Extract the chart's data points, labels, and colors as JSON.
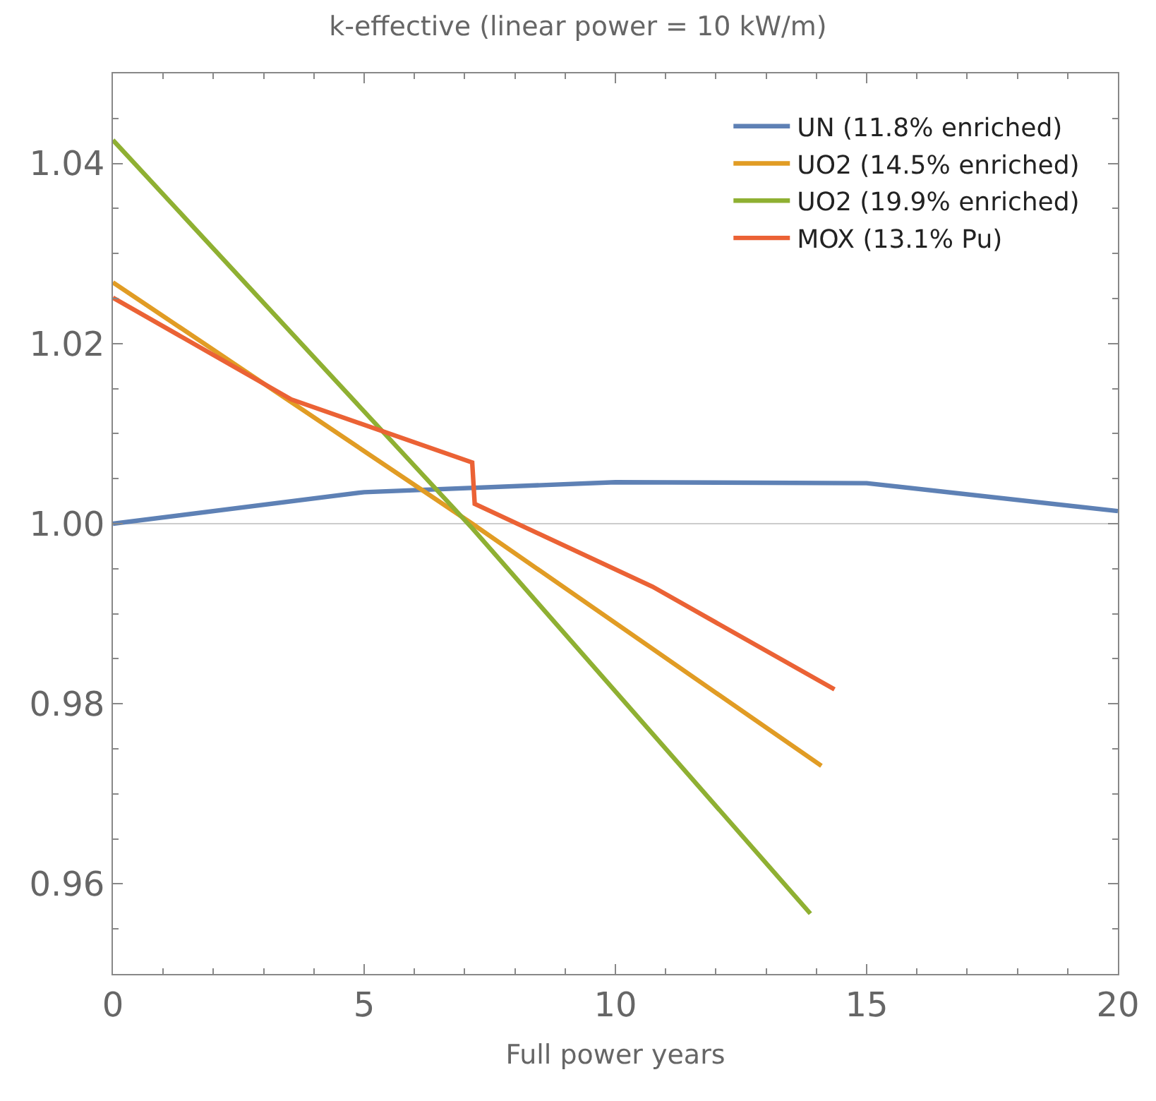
{
  "chart_data": {
    "type": "line",
    "title": "k-effective (linear power = 10 kW/m)",
    "xlabel": "Full power years",
    "xlim": [
      0,
      20
    ],
    "ylim": [
      0.95,
      1.05
    ],
    "xticks": [
      0,
      5,
      10,
      15,
      20
    ],
    "yticks": [
      {
        "value": 0.96,
        "label": "0.96"
      },
      {
        "value": 0.98,
        "label": "0.98"
      },
      {
        "value": 1.0,
        "label": "1.00"
      },
      {
        "value": 1.02,
        "label": "1.02"
      },
      {
        "value": 1.04,
        "label": "1.04"
      }
    ],
    "grid": false,
    "legend": "top right",
    "line_style": "solid",
    "marker": "none",
    "ref_lines": [
      {
        "axis": "y",
        "value": 1.0,
        "color": "#cccccc"
      }
    ],
    "series": [
      {
        "name": "UN (11.8% enriched)",
        "color": "#5e81b5",
        "x": [
          0,
          5,
          10,
          15,
          20
        ],
        "values": [
          1.0,
          1.0035,
          1.0046,
          1.0045,
          1.0014
        ]
      },
      {
        "name": "UO2 (14.5% enriched)",
        "color": "#e19c24",
        "x": [
          0,
          7.15,
          14.1
        ],
        "values": [
          1.0268,
          1.0,
          0.9731
        ]
      },
      {
        "name": "UO2 (19.9% enriched)",
        "color": "#8fb032",
        "x": [
          0,
          7.15,
          13.88
        ],
        "values": [
          1.0426,
          0.9995,
          0.9567
        ]
      },
      {
        "name": "MOX (13.1% Pu)",
        "color": "#eb6235",
        "x": [
          0,
          3.55,
          7.15,
          7.2,
          10.74,
          14.36
        ],
        "values": [
          1.0251,
          1.0138,
          1.0068,
          1.0022,
          0.993,
          0.9816
        ]
      }
    ]
  }
}
